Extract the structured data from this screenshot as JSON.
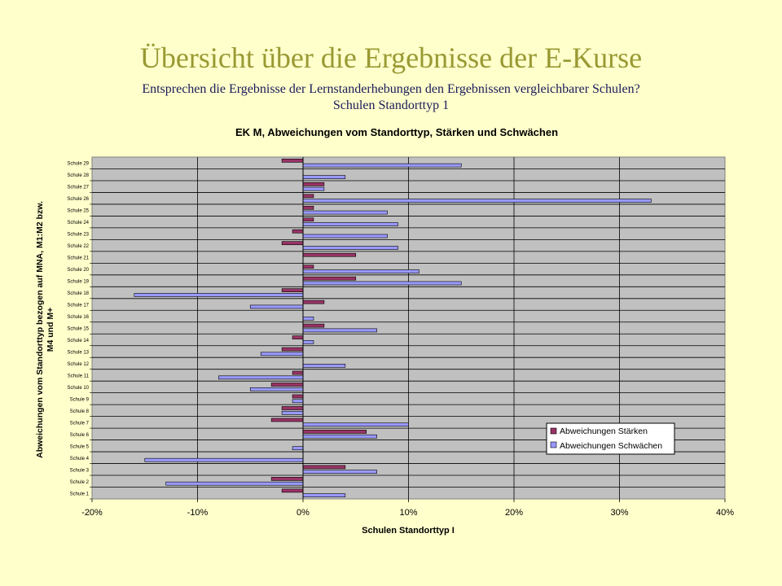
{
  "slide": {
    "title": "Übersicht über die Ergebnisse der E-Kurse",
    "subtitle_line1": "Entsprechen die Ergebnisse der Lernstanderhebungen den Ergebnissen vergleichbarer Schulen?",
    "subtitle_line2": "Schulen Standorttyp 1"
  },
  "colors": {
    "background": "#ffffcc",
    "plot_area": "#c0c0c0",
    "staerken": "#993366",
    "schwaechen": "#9999ff",
    "title": "#999933",
    "subtitle": "#1a1a5a"
  },
  "chart_data": {
    "type": "bar",
    "orientation": "horizontal",
    "title": "EK M, Abweichungen vom Standorttyp, Stärken und Schwächen",
    "xlabel": "Schulen Standorttyp I",
    "ylabel_line1": "Abweichungen vom Standorttyp bezogen auf MNA, M1:M2 bzw.",
    "ylabel_line2": "M4 und M+",
    "xlim": [
      -20,
      40
    ],
    "xticks": [
      -20,
      -10,
      0,
      10,
      20,
      30,
      40
    ],
    "xtick_labels": [
      "-20%",
      "-10%",
      "0%",
      "10%",
      "20%",
      "30%",
      "40%"
    ],
    "categories": [
      "Schule 1",
      "Schule 2",
      "Schule 3",
      "Schule 4",
      "Schule 5",
      "Schule 6",
      "Schule 7",
      "Schule 8",
      "Schule 9",
      "Schule 10",
      "Schule 11",
      "Schule 12",
      "Schule 13",
      "Schule 14",
      "Schule 15",
      "Schule 16",
      "Schule 17",
      "Schule 18",
      "Schule 19",
      "Schule 20",
      "Schule 21",
      "Schule 22",
      "Schule 23",
      "Schule 24",
      "Schule 25",
      "Schule 26",
      "Schule 27",
      "Schule 28",
      "Schule 29"
    ],
    "series": [
      {
        "name": "Abweichungen Stärken",
        "values": [
          -2,
          -3,
          4,
          0,
          0,
          6,
          -3,
          -2,
          -1,
          -3,
          -1,
          0,
          -2,
          -1,
          2,
          0,
          2,
          -2,
          5,
          1,
          5,
          -2,
          -1,
          1,
          1,
          1,
          2,
          0,
          -2
        ]
      },
      {
        "name": "Abweichungen Schwächen",
        "values": [
          4,
          -13,
          7,
          -15,
          -1,
          7,
          10,
          -2,
          -1,
          -5,
          -8,
          4,
          -4,
          1,
          7,
          1,
          -5,
          -16,
          15,
          11,
          0,
          9,
          8,
          9,
          8,
          33,
          2,
          4,
          15
        ]
      }
    ],
    "legend_position": "right"
  }
}
